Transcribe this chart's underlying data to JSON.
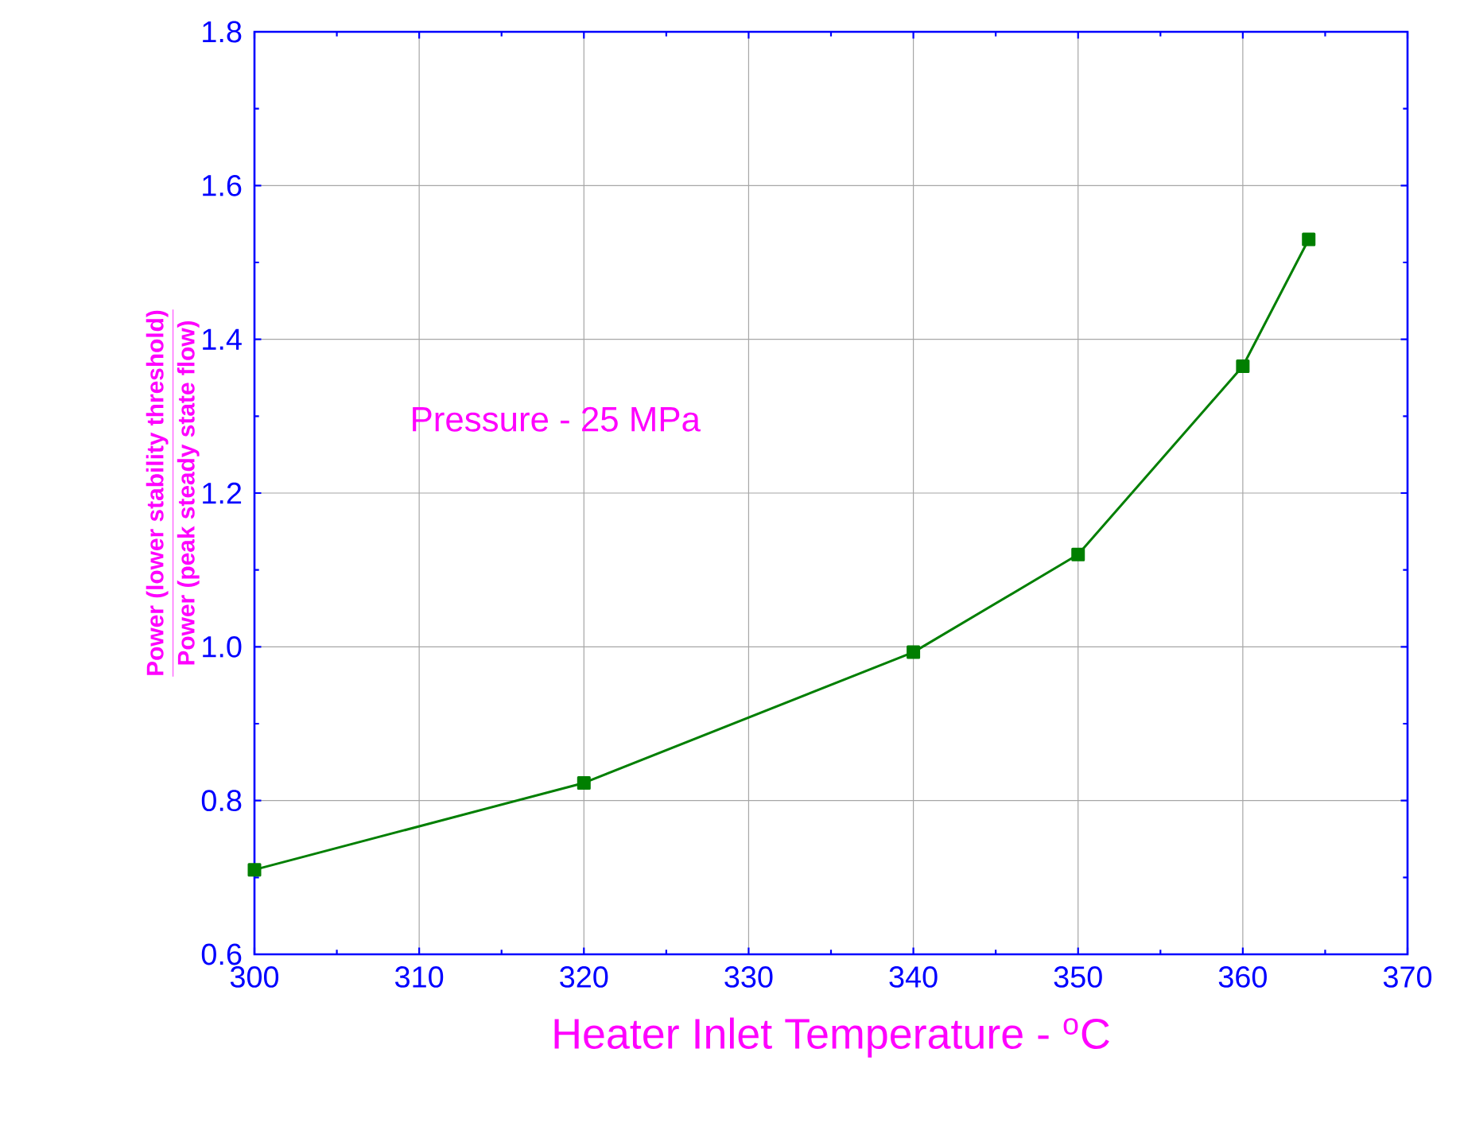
{
  "chart_data": {
    "type": "line",
    "xlabel": "Heater Inlet Temperature - $^{o}$C",
    "ylabel": "\\frac{\\mathbf{Power}\\ \\mbox{(lower stability threshold)}}{\\mathbf{Power}\\ \\mbox{(peak steady state flow)}}",
    "annotations": [
      "Pressure - 25 MPa"
    ],
    "x": [
      300,
      320,
      340,
      350,
      360,
      364
    ],
    "series": [
      {
        "color": "#007f00",
        "values": [
          0.71,
          0.823,
          0.993,
          1.12,
          1.365,
          1.53
        ]
      }
    ],
    "xlim": [
      300,
      370
    ],
    "xticks": [
      300,
      310,
      320,
      330,
      340,
      350,
      360,
      370
    ],
    "ylim": [
      0.6,
      1.8
    ],
    "yticks": [
      0.6,
      0.8,
      {
        "value": 1.0,
        "label": "1.0"
      },
      1.2,
      1.4,
      1.6,
      1.8
    ],
    "grid": true,
    "marker": "square",
    "line_style": "solid"
  }
}
